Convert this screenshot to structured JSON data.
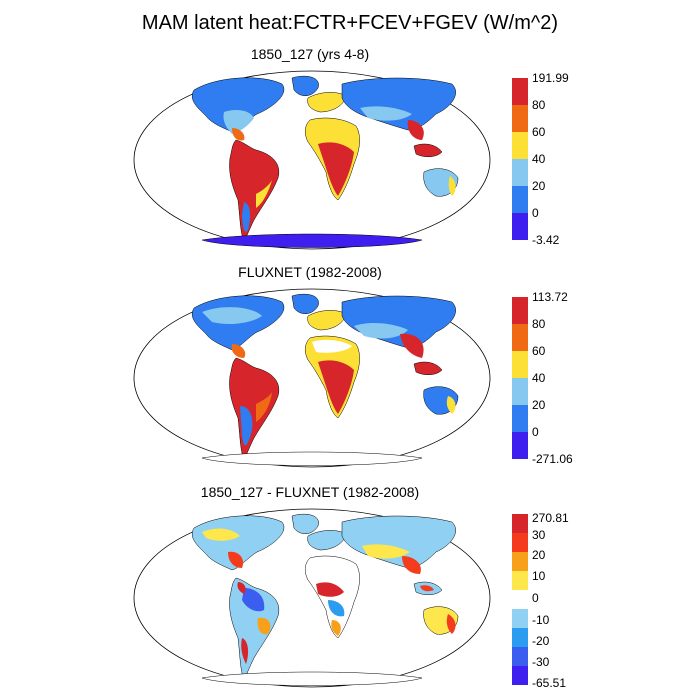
{
  "title": "MAM latent heat:FCTR+FCEV+FGEV (W/m^2)",
  "colors": {
    "ocean": "#ffffff",
    "outline": "#000000"
  },
  "panels": [
    {
      "title": "1850_127 (yrs 4-8)",
      "colorbar": {
        "labels": [
          "191.99",
          "80",
          "60",
          "40",
          "20",
          "0",
          "-3.42"
        ],
        "colors": [
          "#d7262b",
          "#f06a15",
          "#fde035",
          "#86c8ef",
          "#2f7df0",
          "#3f1ef0"
        ]
      }
    },
    {
      "title": "FLUXNET (1982-2008)",
      "colorbar": {
        "labels": [
          "113.72",
          "80",
          "60",
          "40",
          "20",
          "0",
          "-271.06"
        ],
        "colors": [
          "#d7262b",
          "#f06a15",
          "#fde035",
          "#86c8ef",
          "#2f7df0",
          "#3f1ef0"
        ]
      }
    },
    {
      "title": "1850_127 - FLUXNET (1982-2008)",
      "colorbar": {
        "labels": [
          "270.81",
          "30",
          "20",
          "10",
          "0",
          "-10",
          "-20",
          "-30",
          "-65.51"
        ],
        "colors": [
          "#d7262b",
          "#f43c1c",
          "#f9a01b",
          "#fde74c",
          "#ffffff",
          "#8fd0f3",
          "#2b9cf0",
          "#3c5ef0",
          "#3f1ef0"
        ]
      }
    }
  ]
}
